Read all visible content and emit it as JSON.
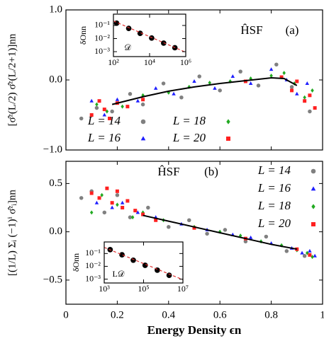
{
  "chart_data": [
    {
      "type": "scatter",
      "ylabel": "[σ̂ᶻ(L/2) σ̂ᶻ(L/2+1)]nn",
      "annotations": [
        "ĤSF",
        "(a)"
      ],
      "xlim": [
        0,
        1
      ],
      "xticks": [
        0,
        0.2,
        0.4,
        0.6,
        0.8,
        1
      ],
      "xtick_labels": false,
      "ylim": [
        -1,
        1
      ],
      "yticks": [
        {
          "value": 1,
          "label": "1.0"
        },
        {
          "value": 0,
          "label": "0.0"
        },
        {
          "value": -1,
          "label": "−1.0"
        }
      ],
      "legend": "lower right",
      "legend_columns": 2,
      "series": [
        {
          "name": "L = 14",
          "color": "#808080",
          "marker": "circle",
          "x": [
            0.06,
            0.12,
            0.18,
            0.25,
            0.3,
            0.38,
            0.45,
            0.52,
            0.6,
            0.68,
            0.75,
            0.82,
            0.88,
            0.95
          ],
          "values": [
            -0.55,
            -0.4,
            -0.45,
            -0.2,
            -0.35,
            -0.05,
            -0.25,
            0.05,
            -0.15,
            0.12,
            -0.08,
            0.22,
            -0.1,
            -0.45
          ]
        },
        {
          "name": "L = 16",
          "color": "#1f1fff",
          "marker": "triangle",
          "x": [
            0.1,
            0.15,
            0.2,
            0.28,
            0.35,
            0.42,
            0.5,
            0.58,
            0.65,
            0.72,
            0.8,
            0.86,
            0.9,
            0.94
          ],
          "values": [
            -0.3,
            -0.5,
            -0.28,
            -0.3,
            -0.12,
            -0.2,
            -0.02,
            -0.12,
            0.05,
            -0.05,
            0.15,
            0.0,
            -0.2,
            -0.05
          ]
        },
        {
          "name": "L = 18",
          "color": "#22aa22",
          "marker": "diamond",
          "x": [
            0.12,
            0.16,
            0.22,
            0.3,
            0.4,
            0.48,
            0.56,
            0.64,
            0.72,
            0.8,
            0.85,
            0.89,
            0.93,
            0.96
          ],
          "values": [
            -0.35,
            -0.45,
            -0.38,
            -0.22,
            -0.18,
            -0.1,
            -0.04,
            -0.02,
            0.02,
            0.06,
            0.1,
            -0.05,
            -0.25,
            -0.15
          ]
        },
        {
          "name": "L = 20",
          "color": "#ff2020",
          "marker": "square",
          "x": [
            0.1,
            0.13,
            0.15,
            0.17,
            0.2,
            0.24,
            0.3,
            0.7,
            0.84,
            0.88,
            0.9,
            0.93,
            0.95,
            0.97
          ],
          "values": [
            -0.5,
            -0.3,
            -0.42,
            -0.55,
            -0.33,
            -0.38,
            -0.28,
            -0.02,
            0.04,
            -0.15,
            -0.02,
            -0.3,
            -0.22,
            -0.4
          ]
        }
      ],
      "curve": {
        "color": "#000000",
        "dashed": false,
        "x": [
          0.18,
          0.3,
          0.4,
          0.5,
          0.6,
          0.7,
          0.8,
          0.85,
          0.9
        ],
        "values": [
          -0.35,
          -0.24,
          -0.16,
          -0.1,
          -0.05,
          -0.01,
          0.03,
          0.02,
          -0.08
        ]
      }
    },
    {
      "type": "scatter",
      "xlabel": "𝒟",
      "ylabel": "δOnn",
      "xscale": "log",
      "yscale": "log",
      "xlim": [
        100,
        1000000
      ],
      "xticks": [
        {
          "value": 100,
          "label": "10²"
        },
        {
          "value": 10000,
          "label": "10⁴"
        },
        {
          "value": 1000000,
          "label": "10⁶"
        }
      ],
      "ylim": [
        0.00042,
        0.73
      ],
      "yticks": [
        {
          "value": 0.1,
          "label": "10⁻¹"
        },
        {
          "value": 0.01,
          "label": "10⁻²"
        },
        {
          "value": 0.001,
          "label": "10⁻³"
        }
      ],
      "series": [
        {
          "color": "#000000",
          "marker": "circle",
          "x": [
            150,
            700,
            3000,
            13000,
            60000,
            250000
          ],
          "values": [
            0.15,
            0.06,
            0.025,
            0.011,
            0.0045,
            0.002
          ]
        }
      ],
      "curve": {
        "color": "#e03030",
        "dashed": true,
        "x": [
          100,
          1000000
        ],
        "values": [
          0.22,
          0.0009
        ]
      }
    },
    {
      "type": "scatter",
      "xlabel": "Energy Density ϵn",
      "ylabel": "[(1/L) Σᵢ (−1)ⁱ σ̂ᶻᵢ]nn",
      "annotations": [
        "ĤSF",
        "(b)"
      ],
      "xlim": [
        0,
        1
      ],
      "xticks": [
        0,
        0.2,
        0.4,
        0.6,
        0.8,
        1
      ],
      "xtick_labels": true,
      "ylim": [
        -0.75,
        0.73
      ],
      "yticks": [
        {
          "value": 0.5,
          "label": "0.5"
        },
        {
          "value": 0,
          "label": "0.0"
        },
        {
          "value": -0.5,
          "label": "−0.5"
        }
      ],
      "legend": "upper right",
      "legend_columns": 1,
      "series": [
        {
          "name": "L = 14",
          "color": "#808080",
          "marker": "circle",
          "x": [
            0.06,
            0.1,
            0.15,
            0.2,
            0.25,
            0.32,
            0.4,
            0.48,
            0.55,
            0.62,
            0.7,
            0.78,
            0.86,
            0.93
          ],
          "values": [
            0.35,
            0.42,
            0.2,
            0.38,
            0.15,
            0.25,
            0.05,
            0.12,
            -0.02,
            0.02,
            -0.1,
            -0.05,
            -0.2,
            -0.25
          ]
        },
        {
          "name": "L = 16",
          "color": "#1f1fff",
          "marker": "triangle",
          "x": [
            0.12,
            0.18,
            0.22,
            0.28,
            0.35,
            0.45,
            0.55,
            0.65,
            0.72,
            0.8,
            0.88,
            0.92,
            0.95,
            0.97
          ],
          "values": [
            0.3,
            0.25,
            0.3,
            0.2,
            0.15,
            0.08,
            0.02,
            -0.03,
            -0.06,
            -0.12,
            -0.17,
            -0.22,
            -0.2,
            -0.25
          ]
        },
        {
          "name": "L = 18",
          "color": "#22aa22",
          "marker": "diamond",
          "x": [
            0.1,
            0.14,
            0.2,
            0.26,
            0.3,
            0.38,
            0.5,
            0.6,
            0.68,
            0.76,
            0.84,
            0.9,
            0.94,
            0.96
          ],
          "values": [
            0.2,
            0.38,
            0.28,
            0.15,
            0.2,
            0.12,
            0.05,
            0.0,
            -0.04,
            -0.1,
            -0.14,
            -0.19,
            -0.22,
            -0.26
          ]
        },
        {
          "name": "L = 20",
          "color": "#ff2020",
          "marker": "square",
          "x": [
            0.1,
            0.13,
            0.16,
            0.18,
            0.2,
            0.22,
            0.24,
            0.27,
            0.3,
            0.35,
            0.5,
            0.7,
            0.9,
            0.95
          ],
          "values": [
            0.4,
            0.35,
            0.45,
            0.3,
            0.42,
            0.25,
            0.32,
            0.22,
            0.18,
            0.12,
            0.04,
            -0.07,
            -0.18,
            -0.24
          ]
        }
      ],
      "curve": {
        "color": "#000000",
        "dashed": false,
        "x": [
          0.3,
          0.4,
          0.5,
          0.6,
          0.7,
          0.8,
          0.9
        ],
        "values": [
          0.17,
          0.11,
          0.05,
          -0.01,
          -0.07,
          -0.13,
          -0.18
        ]
      }
    },
    {
      "type": "scatter",
      "xlabel": "L𝒟",
      "ylabel": "δOnn",
      "xscale": "log",
      "yscale": "log",
      "xlim": [
        1000,
        10000000
      ],
      "xticks": [
        {
          "value": 1000,
          "label": "10³"
        },
        {
          "value": 100000,
          "label": "10⁵"
        },
        {
          "value": 10000000,
          "label": "10⁷"
        }
      ],
      "ylim": [
        0.0005,
        0.8
      ],
      "yticks": [
        {
          "value": 0.1,
          "label": "10⁻¹"
        },
        {
          "value": 0.01,
          "label": "10⁻²"
        },
        {
          "value": 0.001,
          "label": "10⁻³"
        }
      ],
      "series": [
        {
          "color": "#000000",
          "marker": "circle",
          "x": [
            2000,
            8000,
            30000,
            120000,
            500000,
            2000000
          ],
          "values": [
            0.2,
            0.08,
            0.03,
            0.012,
            0.005,
            0.002
          ]
        }
      ],
      "curve": {
        "color": "#e03030",
        "dashed": true,
        "x": [
          1000,
          10000000
        ],
        "values": [
          0.3,
          0.0009
        ]
      }
    }
  ]
}
